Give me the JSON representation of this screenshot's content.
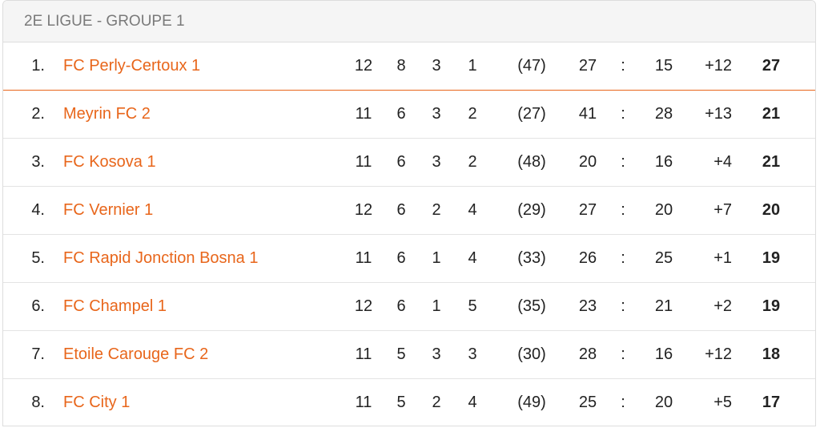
{
  "header": {
    "title": "2E LIGUE - GROUPE 1"
  },
  "table": {
    "rows": [
      [
        "1.",
        "FC Perly-Certoux 1",
        12,
        8,
        3,
        1,
        "(47)",
        27,
        ":",
        15,
        "+12",
        27
      ],
      [
        "2.",
        "Meyrin FC 2",
        11,
        6,
        3,
        2,
        "(27)",
        41,
        ":",
        28,
        "+13",
        21
      ],
      [
        "3.",
        "FC Kosova 1",
        11,
        6,
        3,
        2,
        "(48)",
        20,
        ":",
        16,
        "+4",
        21
      ],
      [
        "4.",
        "FC Vernier 1",
        12,
        6,
        2,
        4,
        "(29)",
        27,
        ":",
        20,
        "+7",
        20
      ],
      [
        "5.",
        "FC Rapid Jonction Bosna 1",
        11,
        6,
        1,
        4,
        "(33)",
        26,
        ":",
        25,
        "+1",
        19
      ],
      [
        "6.",
        "FC Champel 1",
        12,
        6,
        1,
        5,
        "(35)",
        23,
        ":",
        21,
        "+2",
        19
      ],
      [
        "7.",
        "Etoile Carouge FC 2",
        11,
        5,
        3,
        3,
        "(30)",
        28,
        ":",
        16,
        "+12",
        18
      ],
      [
        "8.",
        "FC City 1",
        11,
        5,
        2,
        4,
        "(49)",
        25,
        ":",
        20,
        "+5",
        17
      ]
    ]
  }
}
